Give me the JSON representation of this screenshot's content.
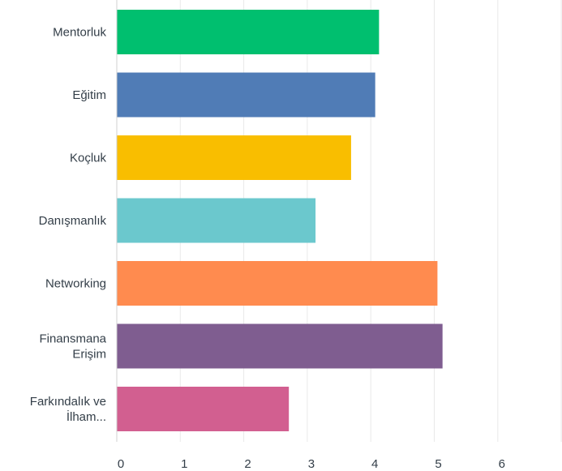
{
  "chart_data": {
    "type": "bar",
    "orientation": "horizontal",
    "categories": [
      [
        "Mentorluk"
      ],
      [
        "Eğitim"
      ],
      [
        "Koçluk"
      ],
      [
        "Danışmanlık"
      ],
      [
        "Networking"
      ],
      [
        "Finansmana",
        "Erişim"
      ],
      [
        "Farkındalık ve",
        "İlham..."
      ]
    ],
    "values": [
      4.13,
      4.07,
      3.69,
      3.13,
      5.05,
      5.13,
      2.71
    ],
    "colors": [
      "#00bf6f",
      "#507cb6",
      "#f9be00",
      "#6bc8cd",
      "#ff8b4f",
      "#7f5d90",
      "#d25f90"
    ],
    "xlim": [
      0,
      7
    ],
    "xticks": [
      "0",
      "1",
      "2",
      "3",
      "4",
      "5",
      "6",
      "7"
    ],
    "grid": true,
    "legend": "none"
  }
}
